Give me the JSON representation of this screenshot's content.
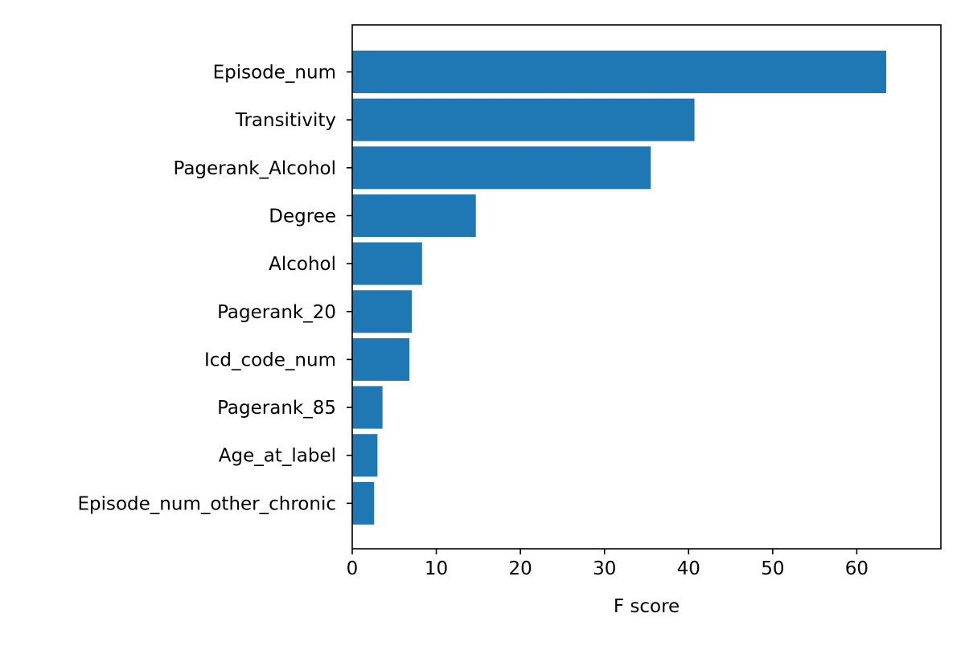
{
  "chart_data": {
    "type": "bar",
    "orientation": "horizontal",
    "title": "",
    "xlabel": "F score",
    "ylabel": "",
    "xlim": [
      0,
      70
    ],
    "xticks": [
      0,
      10,
      20,
      30,
      40,
      50,
      60
    ],
    "grid": false,
    "legend": "none",
    "bar_color": "#1f77b4",
    "categories": [
      "Episode_num",
      "Transitivity",
      "Pagerank_Alcohol",
      "Degree",
      "Alcohol",
      "Pagerank_20",
      "Icd_code_num",
      "Pagerank_85",
      "Age_at_label",
      "Episode_num_other_chronic"
    ],
    "values": [
      63.5,
      40.7,
      35.5,
      14.7,
      8.3,
      7.1,
      6.8,
      3.6,
      3.0,
      2.6
    ]
  }
}
